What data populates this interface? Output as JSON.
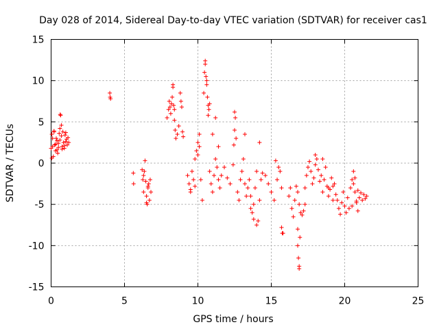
{
  "chart_data": {
    "type": "scatter",
    "title": "Day 028 of 2014, Sidereal Day-to-day VTEC variation (SDTVAR) for receiver cas1",
    "xlabel": "GPS time / hours",
    "ylabel": "SDTVAR / TECUs",
    "xlim": [
      0,
      25
    ],
    "ylim": [
      -15,
      15
    ],
    "xticks": [
      0,
      5,
      10,
      15,
      20,
      25
    ],
    "yticks": [
      -15,
      -10,
      -5,
      0,
      5,
      10,
      15
    ],
    "grid": true,
    "marker": "plus",
    "color": "#ff0000",
    "series": [
      {
        "name": "SDTVAR",
        "x": [
          0.0,
          0.05,
          0.1,
          0.15,
          0.2,
          0.25,
          0.3,
          0.35,
          0.4,
          0.45,
          0.5,
          0.55,
          0.6,
          0.65,
          0.7,
          0.75,
          0.8,
          0.85,
          0.9,
          0.95,
          1.0,
          1.05,
          1.1,
          1.15,
          1.2,
          0.05,
          0.1,
          0.3,
          0.4,
          0.6,
          0.62,
          0.7,
          0.75,
          0.9,
          1.0,
          0.2,
          0.5,
          4.0,
          4.02,
          4.05,
          5.6,
          5.62,
          6.2,
          6.25,
          6.3,
          6.35,
          6.4,
          6.45,
          6.5,
          6.55,
          6.6,
          6.65,
          6.7,
          6.75,
          6.8,
          6.3,
          6.5,
          6.6,
          7.9,
          8.0,
          8.05,
          8.1,
          8.15,
          8.2,
          8.25,
          8.3,
          8.35,
          8.4,
          8.45,
          8.5,
          8.6,
          8.7,
          8.8,
          8.85,
          8.9,
          8.95,
          9.0,
          8.3,
          8.4,
          9.3,
          9.4,
          9.5,
          9.6,
          9.7,
          9.8,
          9.9,
          10.0,
          10.1,
          10.2,
          10.3,
          9.5,
          9.8,
          10.0,
          10.1,
          10.4,
          10.45,
          10.5,
          10.55,
          10.6,
          10.65,
          10.7,
          10.75,
          10.8,
          10.5,
          10.6,
          10.7,
          10.8,
          10.9,
          11.0,
          11.1,
          11.2,
          11.3,
          11.4,
          11.5,
          11.6,
          11.0,
          11.2,
          11.4,
          11.8,
          12.0,
          12.2,
          12.4,
          12.5,
          12.55,
          12.6,
          12.45,
          12.5,
          12.7,
          12.8,
          12.9,
          13.0,
          13.1,
          13.2,
          13.3,
          13.4,
          13.2,
          13.5,
          13.6,
          13.7,
          13.8,
          13.9,
          14.0,
          14.1,
          14.2,
          14.3,
          14.4,
          13.8,
          14.0,
          14.2,
          13.6,
          14.6,
          14.8,
          15.0,
          15.2,
          15.4,
          15.5,
          15.6,
          15.7,
          15.8,
          15.3,
          15.7,
          15.75,
          16.2,
          16.3,
          16.4,
          16.5,
          16.6,
          16.7,
          16.8,
          16.9,
          17.0,
          17.1,
          17.2,
          17.3,
          16.8,
          16.85,
          16.9,
          16.95,
          16.8,
          16.9,
          17.3,
          17.4,
          17.5,
          17.6,
          17.7,
          17.8,
          17.9,
          18.0,
          18.1,
          18.2,
          18.3,
          18.4,
          18.5,
          18.6,
          18.7,
          18.8,
          18.9,
          19.0,
          19.1,
          19.2,
          19.3,
          19.4,
          18.0,
          18.5,
          18.9,
          19.2,
          19.5,
          19.6,
          19.7,
          19.8,
          19.9,
          20.0,
          20.1,
          20.2,
          20.3,
          20.4,
          20.5,
          20.6,
          20.7,
          20.8,
          20.9,
          21.0,
          21.1,
          21.2,
          21.3,
          21.4,
          21.5,
          20.6,
          20.7,
          20.8,
          20.5,
          20.9
        ],
        "y": [
          1.8,
          3.5,
          2.0,
          0.8,
          3.8,
          2.2,
          1.5,
          3.0,
          2.7,
          1.2,
          2.4,
          3.6,
          2.8,
          5.8,
          4.6,
          2.0,
          3.8,
          2.5,
          1.8,
          3.4,
          2.6,
          2.9,
          2.2,
          3.1,
          2.5,
          0.6,
          3.0,
          2.3,
          1.6,
          4.2,
          5.9,
          3.3,
          1.7,
          2.1,
          3.7,
          3.9,
          1.9,
          8.5,
          8.0,
          7.8,
          -1.2,
          -2.5,
          -0.8,
          -2.0,
          -3.5,
          -1.0,
          0.3,
          -2.2,
          -4.0,
          -5.0,
          -3.0,
          -2.5,
          -4.5,
          -2.0,
          -3.5,
          -1.5,
          -4.8,
          -2.8,
          5.5,
          6.5,
          7.5,
          6.8,
          6.0,
          7.2,
          8.0,
          9.5,
          7.0,
          6.5,
          4.0,
          3.0,
          3.5,
          4.5,
          8.5,
          7.5,
          6.8,
          3.8,
          3.2,
          9.2,
          5.2,
          -1.5,
          -2.5,
          -3.5,
          -1.0,
          -2.0,
          0.5,
          1.5,
          2.5,
          3.5,
          -2.0,
          -4.5,
          -3.2,
          -2.8,
          1.0,
          2.0,
          8.5,
          11.0,
          12.0,
          10.5,
          9.5,
          8.0,
          7.0,
          6.5,
          7.2,
          12.4,
          10.0,
          5.8,
          -1.0,
          -2.5,
          -3.5,
          -1.5,
          0.5,
          -0.5,
          -2.0,
          -3.0,
          -1.5,
          3.5,
          5.5,
          2.0,
          -0.5,
          -1.8,
          -2.5,
          -0.2,
          6.2,
          5.5,
          3.0,
          2.2,
          4.0,
          -3.5,
          -4.5,
          -2.0,
          -1.0,
          0.5,
          -2.5,
          -4.0,
          -3.0,
          3.5,
          -2.0,
          -4.0,
          -6.0,
          -5.0,
          -3.0,
          -1.0,
          -7.0,
          -4.5,
          -2.0,
          -1.2,
          -6.8,
          -7.5,
          2.5,
          -5.5,
          -1.5,
          -2.5,
          -3.5,
          -4.5,
          -2.0,
          -0.5,
          -1.0,
          -3.0,
          -8.5,
          0.3,
          -7.8,
          -8.5,
          -4.0,
          -3.0,
          -5.5,
          -6.5,
          -4.5,
          -2.8,
          -3.5,
          -5.0,
          -6.0,
          -6.3,
          -5.8,
          -5.0,
          -10.0,
          -11.5,
          -12.5,
          -9.0,
          -8.0,
          -12.8,
          -3.0,
          -1.5,
          -0.5,
          0.2,
          -1.0,
          -2.5,
          -1.8,
          -0.2,
          0.5,
          -0.8,
          -2.2,
          -1.5,
          -3.5,
          -2.0,
          -0.5,
          -2.8,
          -4.0,
          -3.2,
          -1.8,
          -4.5,
          -2.5,
          -3.8,
          1.0,
          0.5,
          -3.0,
          -2.8,
          -4.5,
          -5.5,
          -6.2,
          -4.8,
          -3.5,
          -5.2,
          -6.0,
          -4.2,
          -5.5,
          -3.0,
          -2.0,
          -1.0,
          -3.5,
          -4.8,
          -5.8,
          -4.2,
          -3.6,
          -4.5,
          -3.8,
          -4.3,
          -4.0,
          -2.5,
          -1.8,
          -4.6,
          -5.2,
          -3.3
        ]
      }
    ]
  }
}
